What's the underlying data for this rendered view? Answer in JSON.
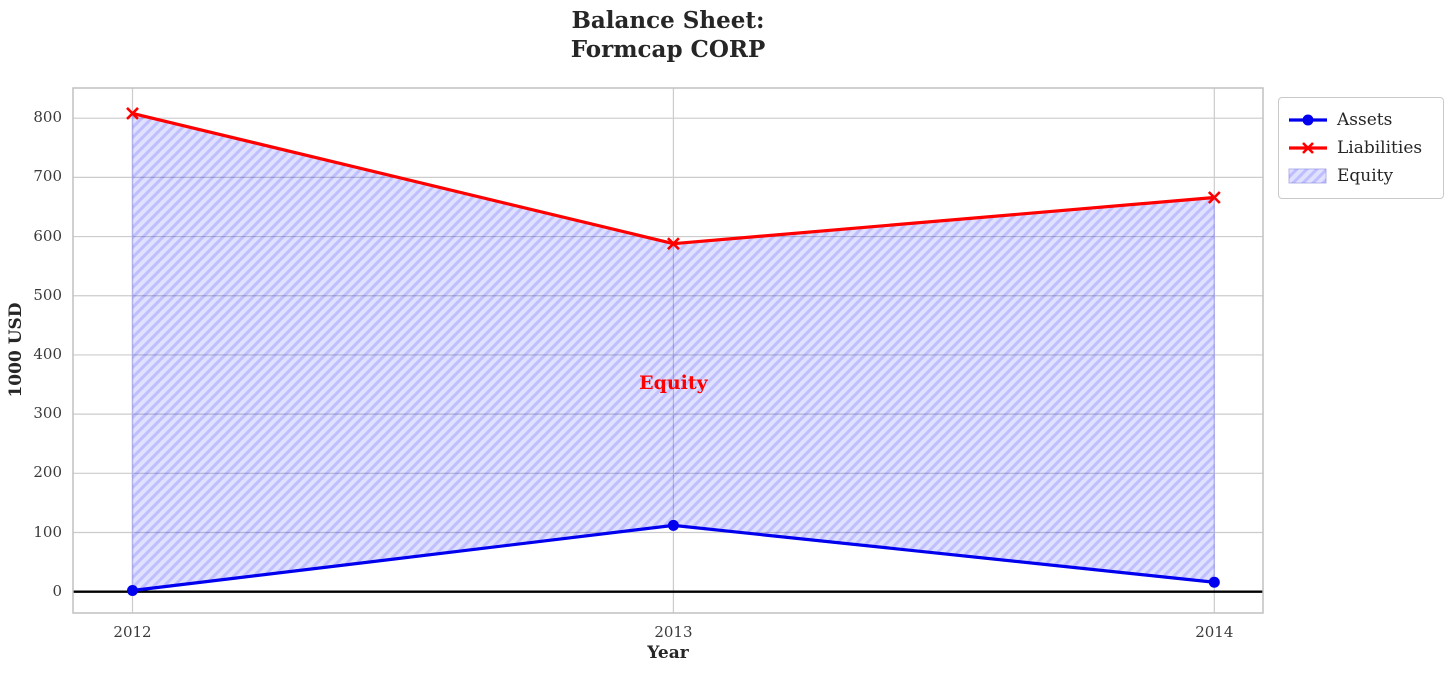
{
  "title": "Balance Sheet:\nFormcap CORP",
  "chart_data": {
    "type": "line",
    "x": [
      2012,
      2013,
      2014
    ],
    "series": [
      {
        "name": "Assets",
        "values": [
          2,
          112,
          16
        ],
        "color": "#0000ee",
        "marker": "circle"
      },
      {
        "name": "Liabilities",
        "values": [
          808,
          588,
          666
        ],
        "color": "#ff0000",
        "marker": "x"
      }
    ],
    "fill_between": {
      "label": "Equity",
      "between": [
        "Assets",
        "Liabilities"
      ],
      "hatch": "/",
      "base_color": "#0000ff",
      "tint_alpha": 0.12,
      "hatch_alpha": 0.15,
      "edge_color": "#b3b3ea"
    },
    "annotation": {
      "text": "Equity",
      "x": 2013,
      "y": 352,
      "color": "#ff0000"
    },
    "xlabel": "Year",
    "ylabel": "1000 USD",
    "xticks": [
      "2012",
      "2013",
      "2014"
    ],
    "xtick_values": [
      2012,
      2013,
      2014
    ],
    "yticks": [
      "0",
      "100",
      "200",
      "300",
      "400",
      "500",
      "600",
      "700",
      "800"
    ],
    "ytick_values": [
      0,
      100,
      200,
      300,
      400,
      500,
      600,
      700,
      800
    ],
    "xlim": [
      2011.89,
      2014.09
    ],
    "ylim": [
      -36,
      851
    ],
    "grid": true,
    "grid_color": "#cccccc",
    "frame_color": "#c0c0c0",
    "zero_line": {
      "y": 0,
      "color": "#000000"
    },
    "legend_position": "outside-top-right",
    "legend": [
      "Assets",
      "Liabilities",
      "Equity"
    ]
  }
}
